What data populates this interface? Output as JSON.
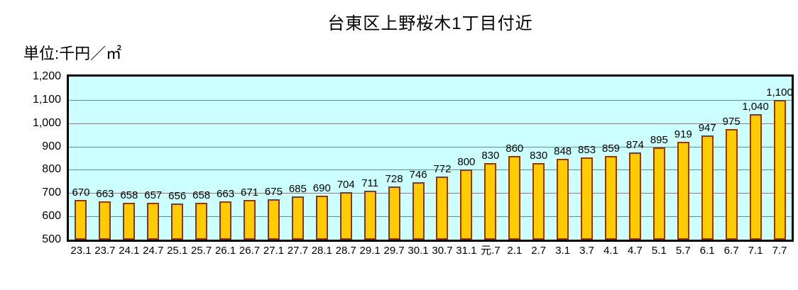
{
  "chart_data": {
    "type": "bar",
    "title": "台東区上野桜木1丁目付近",
    "unit_label": "単位:千円／㎡",
    "categories": [
      "23.1",
      "23.7",
      "24.1",
      "24.7",
      "25.1",
      "25.7",
      "26.1",
      "26.7",
      "27.1",
      "27.7",
      "28.1",
      "28.7",
      "29.1",
      "29.7",
      "30.1",
      "30.7",
      "31.1",
      "元.7",
      "2.1",
      "2.7",
      "3.1",
      "3.7",
      "4.1",
      "4.7",
      "5.1",
      "5.7",
      "6.1",
      "6.7",
      "7.1",
      "7.7"
    ],
    "values": [
      670,
      663,
      658,
      657,
      656,
      658,
      663,
      671,
      675,
      685,
      690,
      704,
      711,
      728,
      746,
      772,
      800,
      830,
      860,
      830,
      848,
      853,
      859,
      874,
      895,
      919,
      947,
      975,
      1040,
      1100
    ],
    "value_labels": [
      "670",
      "663",
      "658",
      "657",
      "656",
      "658",
      "663",
      "671",
      "675",
      "685",
      "690",
      "704",
      "711",
      "728",
      "746",
      "772",
      "800",
      "830",
      "860",
      "830",
      "848",
      "853",
      "859",
      "874",
      "895",
      "919",
      "947",
      "975",
      "1,040",
      "1,100"
    ],
    "ylim": [
      500,
      1200
    ],
    "ytick_step": 100,
    "ytick_labels": [
      "500",
      "600",
      "700",
      "800",
      "900",
      "1,000",
      "1,100",
      "1,200"
    ],
    "grid": true,
    "legend": "none",
    "colors": {
      "bar_fill": "#FFCC00",
      "bar_border": "#993300",
      "plot_bg": "#CCFFFF",
      "gridline": "#808080",
      "plot_border": "#000000",
      "page_bg": "#FFFFFF",
      "text": "#000000"
    }
  }
}
